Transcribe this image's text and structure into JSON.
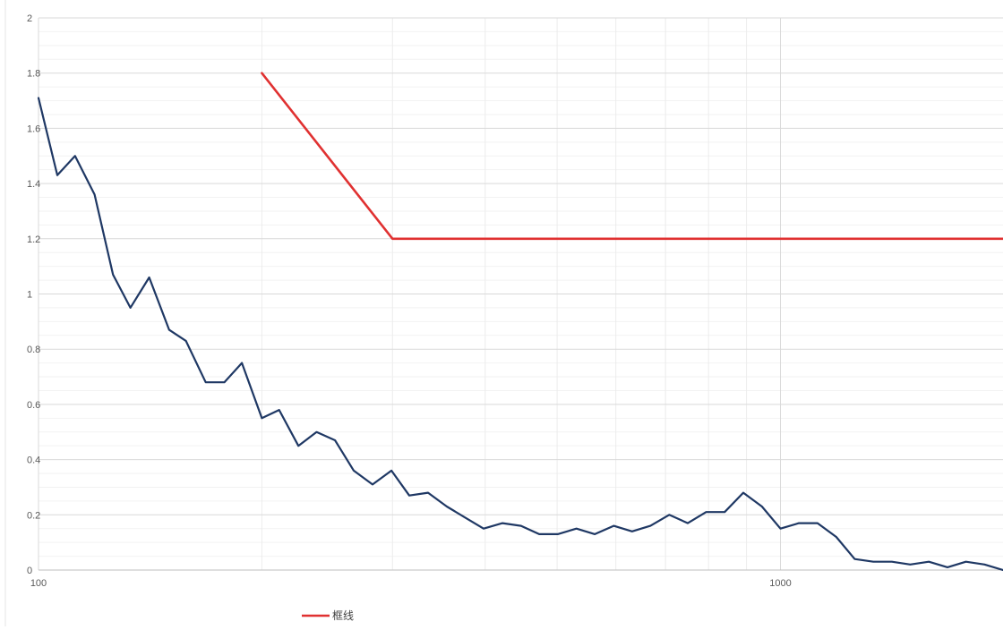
{
  "chart_data": {
    "type": "line",
    "x_scale": "log",
    "xlim": [
      100,
      1995
    ],
    "ylim": [
      0,
      2
    ],
    "grid": true,
    "title": "",
    "xlabel": "",
    "ylabel": "",
    "x_ticks": [
      "100",
      "1000"
    ],
    "y_ticks": [
      "0",
      "0.2",
      "0.4",
      "0.6",
      "0.8",
      "1",
      "1.2",
      "1.4",
      "1.6",
      "1.8",
      "2"
    ],
    "legend_position": "bottom-left",
    "series": [
      {
        "color": "#1f3864",
        "x": [
          100,
          106,
          112,
          119,
          126,
          133,
          141,
          150,
          158,
          168,
          178,
          188,
          200,
          211,
          224,
          237,
          251,
          266,
          282,
          299,
          316,
          335,
          355,
          376,
          398,
          422,
          447,
          473,
          501,
          531,
          562,
          596,
          631,
          668,
          708,
          750,
          794,
          841,
          891,
          944,
          1000,
          1059,
          1122,
          1189,
          1259,
          1334,
          1413,
          1496,
          1585,
          1679,
          1778,
          1884,
          1995
        ],
        "y": [
          1.71,
          1.43,
          1.5,
          1.36,
          1.07,
          0.95,
          1.06,
          0.87,
          0.83,
          0.68,
          0.68,
          0.75,
          0.55,
          0.58,
          0.45,
          0.5,
          0.47,
          0.36,
          0.31,
          0.36,
          0.27,
          0.28,
          0.23,
          0.19,
          0.15,
          0.17,
          0.16,
          0.13,
          0.13,
          0.15,
          0.13,
          0.16,
          0.14,
          0.16,
          0.2,
          0.17,
          0.21,
          0.21,
          0.28,
          0.23,
          0.15,
          0.17,
          0.17,
          0.12,
          0.04,
          0.03,
          0.03,
          0.02,
          0.03,
          0.01,
          0.03,
          0.02,
          0.0
        ]
      },
      {
        "name": "框线",
        "color": "#e03131",
        "x": [
          200,
          300,
          1995
        ],
        "y": [
          1.8,
          1.2,
          1.2
        ]
      }
    ]
  }
}
